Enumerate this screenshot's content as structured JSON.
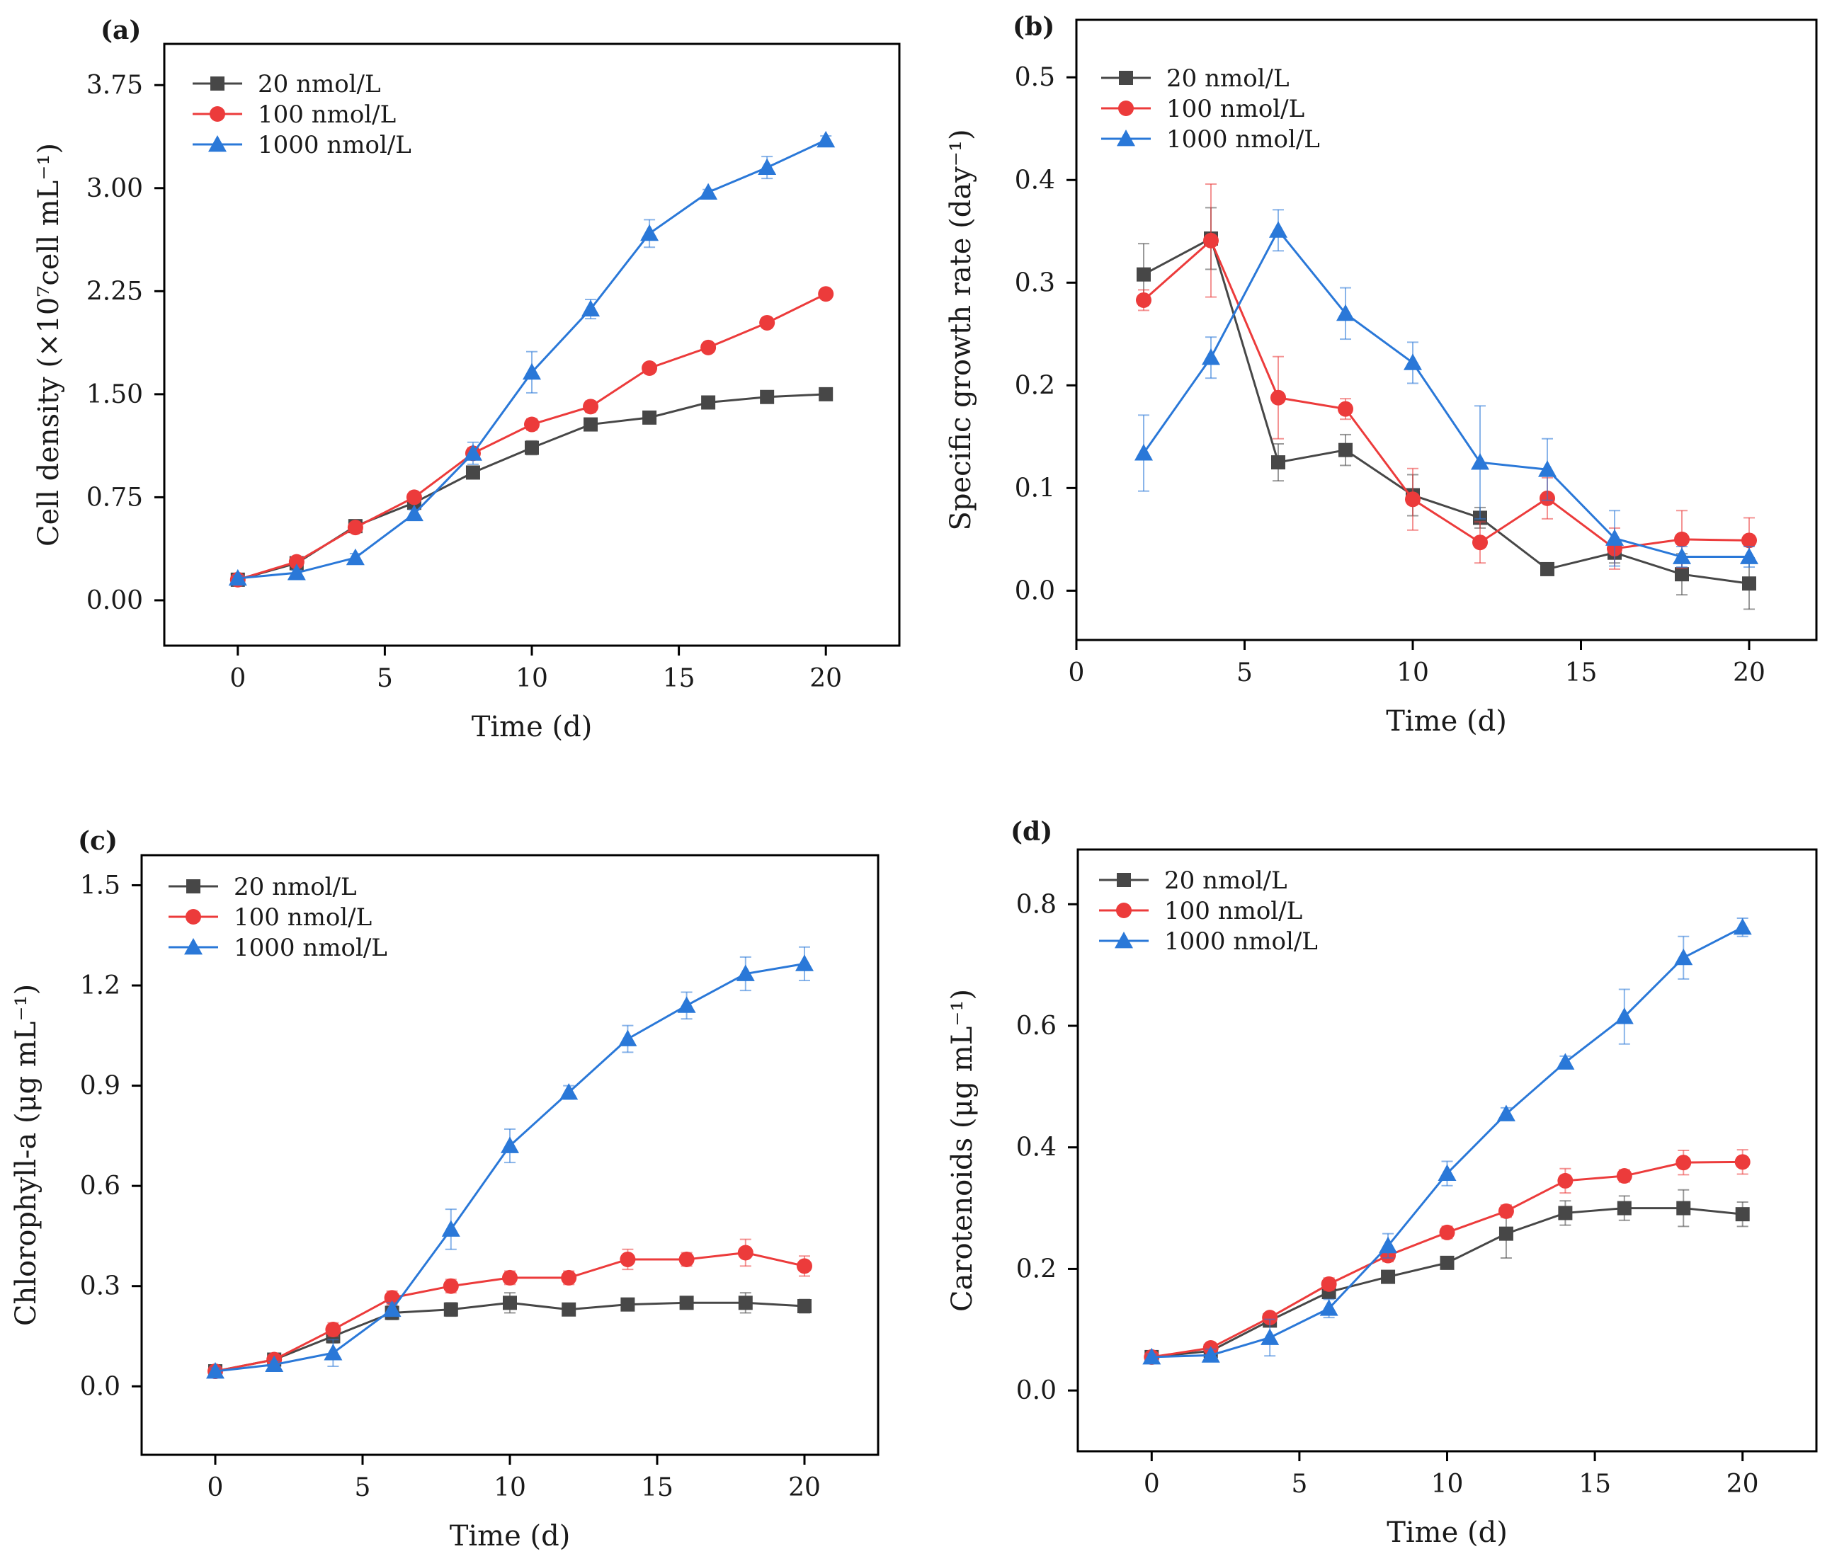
{
  "series_styles": [
    {
      "color": "#474747",
      "marker": "square"
    },
    {
      "color": "#ec3b3b",
      "marker": "circle"
    },
    {
      "color": "#2a78d8",
      "marker": "triangle"
    }
  ],
  "chart_data": [
    {
      "panel": "(a)",
      "type": "line",
      "xlabel": "Time (d)",
      "ylabel": "Cell density (×10⁷cell mL⁻¹)",
      "xlim": [
        -2.5,
        22.5
      ],
      "ylim": [
        -0.33,
        4.05
      ],
      "xticks": [
        0,
        5,
        10,
        15,
        20
      ],
      "xtick_labels": [
        "0",
        "5",
        "10",
        "15",
        "20"
      ],
      "yticks": [
        0,
        0.75,
        1.5,
        2.25,
        3.0,
        3.75
      ],
      "ytick_labels": [
        "0.00",
        "0.75",
        "1.50",
        "2.25",
        "3.00",
        "3.75"
      ],
      "legend_position": "top-left",
      "x": [
        0,
        2,
        4,
        6,
        8,
        10,
        12,
        14,
        16,
        18,
        20
      ],
      "series": [
        {
          "name": "20 nmol/L",
          "values": [
            0.15,
            0.27,
            0.54,
            0.71,
            0.93,
            1.11,
            1.28,
            1.33,
            1.44,
            1.48,
            1.5
          ],
          "errors": [
            0.02,
            0.02,
            0.03,
            0.03,
            0.04,
            0.05,
            0.03,
            0.02,
            0.02,
            0.02,
            0.02
          ]
        },
        {
          "name": "100 nmol/L",
          "values": [
            0.15,
            0.28,
            0.53,
            0.75,
            1.07,
            1.28,
            1.41,
            1.69,
            1.84,
            2.02,
            2.23
          ],
          "errors": [
            0.02,
            0.02,
            0.03,
            0.03,
            0.04,
            0.04,
            0.04,
            0.03,
            0.03,
            0.03,
            0.03
          ]
        },
        {
          "name": "1000 nmol/L",
          "values": [
            0.16,
            0.2,
            0.31,
            0.63,
            1.07,
            1.66,
            2.12,
            2.67,
            2.97,
            3.15,
            3.35
          ],
          "errors": [
            0.02,
            0.02,
            0.03,
            0.03,
            0.08,
            0.15,
            0.07,
            0.1,
            0.02,
            0.08,
            0.03
          ]
        }
      ]
    },
    {
      "panel": "(b)",
      "type": "line",
      "xlabel": "Time (d)",
      "ylabel": "Specific growth rate (day⁻¹)",
      "xlim": [
        0,
        22
      ],
      "ylim": [
        -0.048,
        0.556
      ],
      "xticks": [
        0,
        5,
        10,
        15,
        20
      ],
      "xtick_labels": [
        "0",
        "5",
        "10",
        "15",
        "20"
      ],
      "yticks": [
        0,
        0.1,
        0.2,
        0.3,
        0.4,
        0.5
      ],
      "ytick_labels": [
        "0.0",
        "0.1",
        "0.2",
        "0.3",
        "0.4",
        "0.5"
      ],
      "legend_position": "top-left",
      "x": [
        2,
        4,
        6,
        8,
        10,
        12,
        14,
        16,
        18,
        20
      ],
      "series": [
        {
          "name": "20 nmol/L",
          "values": [
            0.308,
            0.343,
            0.125,
            0.137,
            0.093,
            0.071,
            0.021,
            0.037,
            0.016,
            0.007
          ],
          "errors": [
            0.03,
            0.03,
            0.018,
            0.015,
            0.02,
            0.01,
            0.004,
            0.01,
            0.02,
            0.025
          ]
        },
        {
          "name": "100 nmol/L",
          "values": [
            0.283,
            0.341,
            0.188,
            0.177,
            0.089,
            0.047,
            0.09,
            0.041,
            0.05,
            0.049
          ],
          "errors": [
            0.01,
            0.055,
            0.04,
            0.01,
            0.03,
            0.02,
            0.02,
            0.02,
            0.028,
            0.022
          ]
        },
        {
          "name": "1000 nmol/L",
          "values": [
            0.134,
            0.227,
            0.351,
            0.27,
            0.222,
            0.125,
            0.118,
            0.051,
            0.033,
            0.033
          ],
          "errors": [
            0.037,
            0.02,
            0.02,
            0.025,
            0.02,
            0.055,
            0.03,
            0.027,
            0.01,
            0.01
          ]
        }
      ]
    },
    {
      "panel": "(c)",
      "type": "line",
      "xlabel": "Time (d)",
      "ylabel": "Chlorophyll-a (μg mL⁻¹)",
      "xlim": [
        -2.5,
        22.5
      ],
      "ylim": [
        -0.205,
        1.59
      ],
      "xticks": [
        0,
        5,
        10,
        15,
        20
      ],
      "xtick_labels": [
        "0",
        "5",
        "10",
        "15",
        "20"
      ],
      "yticks": [
        0,
        0.3,
        0.6,
        0.9,
        1.2,
        1.5
      ],
      "ytick_labels": [
        "0.0",
        "0.3",
        "0.6",
        "0.9",
        "1.2",
        "1.5"
      ],
      "legend_position": "top-left",
      "x": [
        0,
        2,
        4,
        6,
        8,
        10,
        12,
        14,
        16,
        18,
        20
      ],
      "series": [
        {
          "name": "20 nmol/L",
          "values": [
            0.045,
            0.08,
            0.15,
            0.22,
            0.23,
            0.25,
            0.23,
            0.245,
            0.25,
            0.25,
            0.24
          ],
          "errors": [
            0.01,
            0.01,
            0.02,
            0.02,
            0.02,
            0.03,
            0.01,
            0.01,
            0.01,
            0.03,
            0.02
          ]
        },
        {
          "name": "100 nmol/L",
          "values": [
            0.045,
            0.08,
            0.17,
            0.265,
            0.3,
            0.325,
            0.325,
            0.38,
            0.38,
            0.4,
            0.36
          ],
          "errors": [
            0.01,
            0.01,
            0.02,
            0.02,
            0.02,
            0.02,
            0.02,
            0.03,
            0.02,
            0.04,
            0.03
          ]
        },
        {
          "name": "1000 nmol/L",
          "values": [
            0.045,
            0.065,
            0.1,
            0.23,
            0.47,
            0.72,
            0.88,
            1.04,
            1.14,
            1.235,
            1.265
          ],
          "errors": [
            0.01,
            0.01,
            0.04,
            0.02,
            0.06,
            0.05,
            0.02,
            0.04,
            0.04,
            0.05,
            0.05
          ]
        }
      ]
    },
    {
      "panel": "(d)",
      "type": "line",
      "xlabel": "Time (d)",
      "ylabel": "Carotenoids (μg mL⁻¹)",
      "xlim": [
        -2.5,
        22.5
      ],
      "ylim": [
        -0.1,
        0.89
      ],
      "xticks": [
        0,
        5,
        10,
        15,
        20
      ],
      "xtick_labels": [
        "0",
        "5",
        "10",
        "15",
        "20"
      ],
      "yticks": [
        0,
        0.2,
        0.4,
        0.6,
        0.8
      ],
      "ytick_labels": [
        "0.0",
        "0.2",
        "0.4",
        "0.6",
        "0.8"
      ],
      "legend_position": "top-left",
      "x": [
        0,
        2,
        4,
        6,
        8,
        10,
        12,
        14,
        16,
        18,
        20
      ],
      "series": [
        {
          "name": "20 nmol/L",
          "values": [
            0.055,
            0.065,
            0.115,
            0.162,
            0.187,
            0.21,
            0.258,
            0.292,
            0.3,
            0.3,
            0.29
          ],
          "errors": [
            0.005,
            0.005,
            0.008,
            0.01,
            0.01,
            0.01,
            0.04,
            0.02,
            0.02,
            0.03,
            0.02
          ]
        },
        {
          "name": "100 nmol/L",
          "values": [
            0.055,
            0.07,
            0.12,
            0.175,
            0.222,
            0.26,
            0.295,
            0.345,
            0.353,
            0.375,
            0.376
          ],
          "errors": [
            0.005,
            0.005,
            0.008,
            0.01,
            0.01,
            0.01,
            0.01,
            0.02,
            0.01,
            0.02,
            0.02
          ]
        },
        {
          "name": "1000 nmol/L",
          "values": [
            0.055,
            0.058,
            0.087,
            0.135,
            0.238,
            0.357,
            0.455,
            0.54,
            0.615,
            0.712,
            0.762
          ],
          "errors": [
            0.005,
            0.01,
            0.03,
            0.015,
            0.02,
            0.02,
            0.01,
            0.01,
            0.045,
            0.035,
            0.015
          ]
        }
      ]
    }
  ]
}
